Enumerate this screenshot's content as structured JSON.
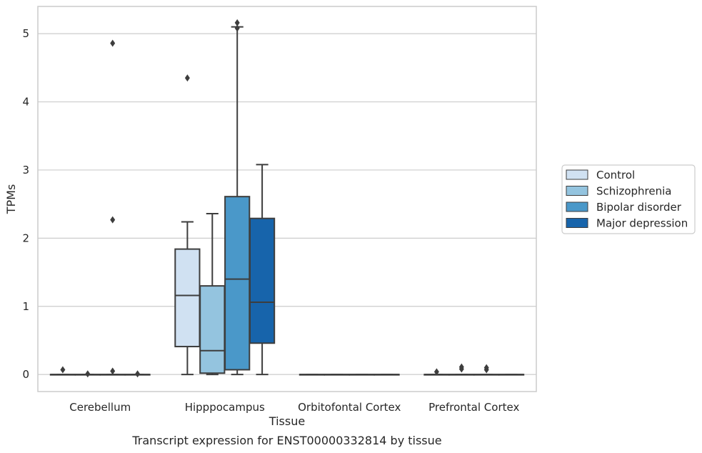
{
  "chart_data": {
    "type": "box",
    "xlabel": "Tissue",
    "ylabel": "TPMs",
    "caption": "Transcript expression for ENST00000332814 by tissue",
    "ylim": [
      -0.25,
      5.4
    ],
    "yticks": [
      0,
      1,
      2,
      3,
      4,
      5
    ],
    "grid": "horizontal",
    "legend_position": "right",
    "categories": [
      "Cerebellum",
      "Hipppocampus",
      "Orbitofontal Cortex",
      "Prefrontal Cortex"
    ],
    "series": [
      {
        "name": "Control",
        "color": "#d0e1f2",
        "boxes": [
          {
            "min": 0,
            "q1": 0,
            "median": 0,
            "q3": 0,
            "max": 0,
            "outliers": [
              0.07
            ]
          },
          {
            "min": 0,
            "q1": 0.41,
            "median": 1.16,
            "q3": 1.84,
            "max": 2.24,
            "outliers": [
              4.35
            ]
          },
          {
            "min": 0,
            "q1": 0,
            "median": 0,
            "q3": 0,
            "max": 0,
            "outliers": []
          },
          {
            "min": 0,
            "q1": 0,
            "median": 0,
            "q3": 0,
            "max": 0,
            "outliers": [
              0.04
            ]
          }
        ]
      },
      {
        "name": "Schizophrenia",
        "color": "#94c4df",
        "boxes": [
          {
            "min": 0,
            "q1": 0,
            "median": 0,
            "q3": 0,
            "max": 0,
            "outliers": [
              0.01
            ]
          },
          {
            "min": 0,
            "q1": 0.02,
            "median": 0.35,
            "q3": 1.3,
            "max": 2.36,
            "outliers": []
          },
          {
            "min": 0,
            "q1": 0,
            "median": 0,
            "q3": 0,
            "max": 0,
            "outliers": []
          },
          {
            "min": 0,
            "q1": 0,
            "median": 0,
            "q3": 0,
            "max": 0,
            "outliers": [
              0.08,
              0.11
            ]
          }
        ]
      },
      {
        "name": "Bipolar disorder",
        "color": "#4a98c9",
        "boxes": [
          {
            "min": 0,
            "q1": 0,
            "median": 0,
            "q3": 0,
            "max": 0,
            "outliers": [
              0.05,
              2.27,
              4.86
            ]
          },
          {
            "min": 0,
            "q1": 0.07,
            "median": 1.4,
            "q3": 2.61,
            "max": 5.1,
            "outliers": [
              5.08,
              5.16
            ]
          },
          {
            "min": 0,
            "q1": 0,
            "median": 0,
            "q3": 0,
            "max": 0,
            "outliers": []
          },
          {
            "min": 0,
            "q1": 0,
            "median": 0,
            "q3": 0,
            "max": 0,
            "outliers": [
              0.07,
              0.1
            ]
          }
        ]
      },
      {
        "name": "Major depression",
        "color": "#1764ab",
        "boxes": [
          {
            "min": 0,
            "q1": 0,
            "median": 0,
            "q3": 0,
            "max": 0,
            "outliers": [
              0.01
            ]
          },
          {
            "min": 0,
            "q1": 0.46,
            "median": 1.06,
            "q3": 2.29,
            "max": 3.08,
            "outliers": []
          },
          {
            "min": 0,
            "q1": 0,
            "median": 0,
            "q3": 0,
            "max": 0,
            "outliers": []
          },
          {
            "min": 0,
            "q1": 0,
            "median": 0,
            "q3": 0,
            "max": 0,
            "outliers": []
          }
        ]
      }
    ]
  }
}
